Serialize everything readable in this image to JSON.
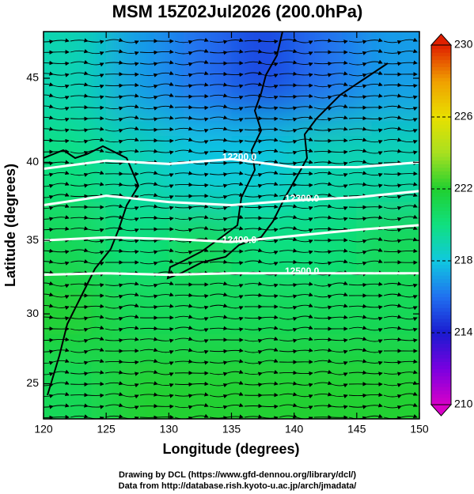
{
  "chart_data": {
    "type": "map",
    "title": "MSM 15Z02Jul2026 (200.0hPa)",
    "xlabel": "Longitude (degrees)",
    "ylabel": "Latitude  (degrees)",
    "projection": "mercator",
    "xlim": [
      120,
      150
    ],
    "ylim": [
      22.4,
      47.6
    ],
    "xticks": [
      120,
      125,
      130,
      135,
      140,
      145,
      150
    ],
    "yticks": [
      25,
      30,
      35,
      40,
      45
    ],
    "field": {
      "lon": [
        122.5,
        127.5,
        132.5,
        137.5,
        142.5,
        147.5
      ],
      "lat": [
        45,
        40,
        35,
        30,
        25
      ],
      "values": [
        [
          219,
          217,
          216,
          215,
          216,
          217
        ],
        [
          220,
          219,
          218,
          218,
          219,
          219
        ],
        [
          221,
          220,
          221,
          220,
          220,
          221
        ],
        [
          222,
          221,
          221,
          221,
          221,
          221
        ],
        [
          221,
          222,
          222,
          222,
          222,
          222
        ]
      ]
    },
    "contours": [
      {
        "level": {
          "value": 12200,
          "label": "12200.0"
        },
        "lon": [
          120,
          125,
          130,
          135,
          140,
          145,
          150
        ],
        "lat": [
          39.6,
          40.1,
          39.9,
          40.2,
          39.7,
          39.7,
          40.0
        ]
      },
      {
        "level": {
          "value": 12300,
          "label": "12300.0"
        },
        "lon": [
          120,
          125,
          130,
          135,
          140,
          145,
          150
        ],
        "lat": [
          37.3,
          37.9,
          37.5,
          37.3,
          37.6,
          37.8,
          38.2
        ]
      },
      {
        "level": {
          "value": 12400,
          "label": "12400.0"
        },
        "lon": [
          120,
          125,
          130,
          135,
          140,
          145,
          150
        ],
        "lat": [
          35.0,
          35.2,
          35.1,
          34.9,
          35.3,
          35.7,
          36.0
        ]
      },
      {
        "level": {
          "value": 12500,
          "label": "12500.0"
        },
        "lon": [
          120,
          125,
          130,
          135,
          140,
          145,
          150
        ],
        "lat": [
          32.7,
          32.8,
          32.7,
          32.8,
          32.8,
          32.8,
          32.8
        ]
      }
    ],
    "colorbar": {
      "lim": [
        210,
        230
      ],
      "ticks": [
        210,
        214,
        218,
        222,
        226,
        230
      ],
      "stops": [
        {
          "value": 210,
          "color": "#d800c8"
        },
        {
          "value": 212,
          "color": "#7a00e0"
        },
        {
          "value": 214,
          "color": "#1a1ad0"
        },
        {
          "value": 216,
          "color": "#2070f0"
        },
        {
          "value": 218,
          "color": "#10c8e0"
        },
        {
          "value": 220,
          "color": "#10e080"
        },
        {
          "value": 222,
          "color": "#20d030"
        },
        {
          "value": 224,
          "color": "#a8e020"
        },
        {
          "value": 226,
          "color": "#e8e000"
        },
        {
          "value": 228,
          "color": "#f0a000"
        },
        {
          "value": 230,
          "color": "#e02000"
        }
      ]
    },
    "footer": [
      "Drawing by DCL (https://www.gfd-dennou.org/library/dcl/)",
      "Data from http://database.rish.kyoto-u.ac.jp/arch/jmadata/"
    ]
  }
}
